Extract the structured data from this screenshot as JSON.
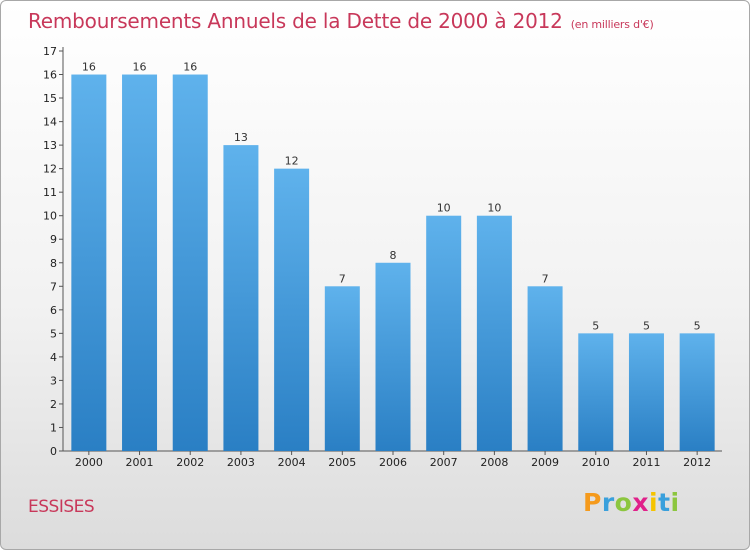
{
  "header": {
    "title": "Remboursements Annuels de la Dette de 2000 à 2012",
    "unit": "(en milliers d'€)"
  },
  "commune": "ESSISES",
  "brand": {
    "letters": [
      "P",
      "r",
      "o",
      "x",
      "i",
      "t",
      "i"
    ],
    "colors": [
      "#f59a1c",
      "#3aa0dc",
      "#8cc63f",
      "#e0218a",
      "#f5c400",
      "#3aa0dc",
      "#8cc63f"
    ]
  },
  "colors": {
    "bar_top": "#5fb2ec",
    "bar_bottom": "#2a7fc4",
    "title": "#c8385a"
  },
  "chart_data": {
    "type": "bar",
    "title": "Remboursements Annuels de la Dette de 2000 à 2012",
    "categories": [
      "2000",
      "2001",
      "2002",
      "2003",
      "2004",
      "2005",
      "2006",
      "2007",
      "2008",
      "2009",
      "2010",
      "2011",
      "2012"
    ],
    "values": [
      16,
      16,
      16,
      13,
      12,
      7,
      8,
      10,
      10,
      7,
      5,
      5,
      5
    ],
    "ylim": [
      0,
      17
    ],
    "yticks": [
      "0",
      "1",
      "2",
      "3",
      "4",
      "5",
      "6",
      "7",
      "8",
      "9",
      "10",
      "11",
      "12",
      "13",
      "14",
      "15",
      "16",
      "17"
    ],
    "grid": false,
    "legend": "none"
  }
}
